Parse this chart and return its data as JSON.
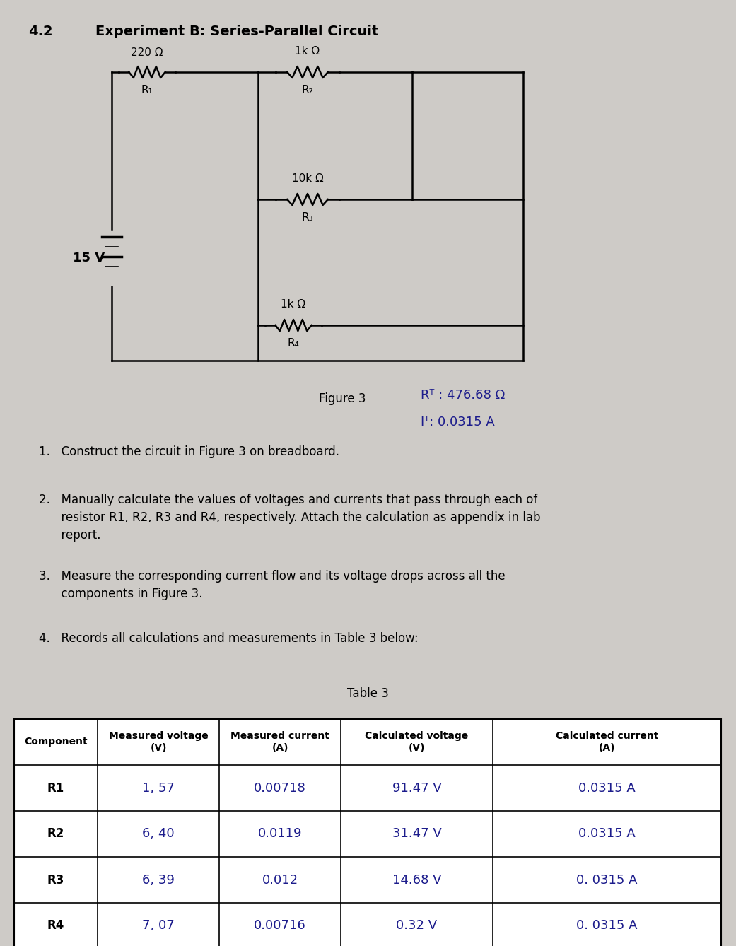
{
  "title_number": "4.2",
  "title_text": "Experiment B: Series-Parallel Circuit",
  "figure_label": "Figure 3",
  "rt_annotation": "Rᵀ : 476.68 Ω",
  "it_annotation": "Iᵀ: 0.0315 A",
  "background_color": "#cecbc7",
  "circuit_bg": "#e8e6e2",
  "instructions": [
    "1.   Construct the circuit in Figure 3 on breadboard.",
    "2.   Manually calculate the values of voltages and currents that pass through each of\n      resistor R1, R2, R3 and R4, respectively. Attach the calculation as appendix in lab\n      report.",
    "3.   Measure the corresponding current flow and its voltage drops across all the\n      components in Figure 3.",
    "4.   Records all calculations and measurements in Table 3 below:"
  ],
  "table_title": "Table 3",
  "table_headers": [
    "Component",
    "Measured voltage\n(V)",
    "Measured current\n(A)",
    "Calculated voltage\n(V)",
    "Calculated current\n(A)"
  ],
  "table_data": [
    [
      "R1",
      "1, 57",
      "0.00718",
      "91.47 V",
      "0.0315 A"
    ],
    [
      "R2",
      "6, 40",
      "0.0119",
      "31.47 V",
      "0.0315 A"
    ],
    [
      "R3",
      "6, 39",
      "0.012",
      "14.68 V",
      "0. 0315 A"
    ],
    [
      "R4",
      "7, 07",
      "0.00716",
      "0.32 V",
      "0. 0315 A"
    ]
  ],
  "circuit": {
    "voltage_source": "15 V",
    "r1_label": "220 Ω",
    "r1_sub": "R₁",
    "r2_label": "1k Ω",
    "r2_sub": "R₂",
    "r3_label": "10k Ω",
    "r3_sub": "R₃",
    "r4_label": "1k Ω",
    "r4_sub": "R₄"
  },
  "lw": 1.8
}
